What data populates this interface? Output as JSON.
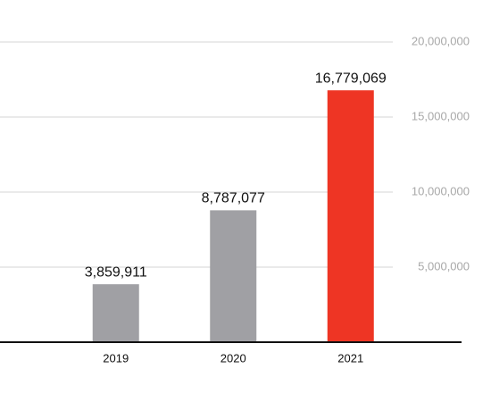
{
  "chart_data": {
    "type": "bar",
    "categories": [
      "2019",
      "2020",
      "2021"
    ],
    "values": [
      3859911,
      8787077,
      16779069
    ],
    "value_labels": [
      "3,859,911",
      "8,787,077",
      "16,779,069"
    ],
    "colors": [
      "#a0a0a4",
      "#a0a0a4",
      "#ee3524"
    ],
    "ylim": [
      0,
      20000000
    ],
    "yticks": [
      {
        "value": 5000000,
        "label": "5,000,000"
      },
      {
        "value": 10000000,
        "label": "10,000,000"
      },
      {
        "value": 15000000,
        "label": "15,000,000"
      },
      {
        "value": 20000000,
        "label": "20,000,000"
      }
    ],
    "grid": true
  }
}
